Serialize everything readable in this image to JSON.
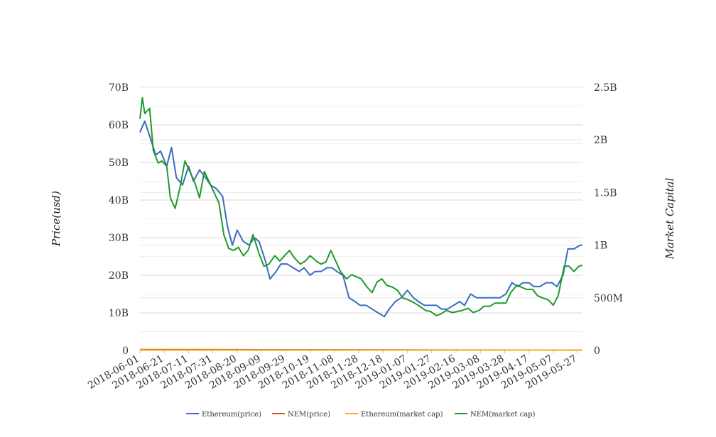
{
  "chart_data": {
    "type": "line",
    "ylabel": "Price(usd)",
    "y2label": "Market Capital",
    "x_ticks": [
      "2018-06-01",
      "2018-06-21",
      "2018-07-11",
      "2018-07-31",
      "2018-08-20",
      "2018-09-09",
      "2018-09-29",
      "2018-10-19",
      "2018-11-08",
      "2018-11-28",
      "2018-12-18",
      "2019-01-07",
      "2019-01-27",
      "2019-02-16",
      "2019-03-08",
      "2019-03-28",
      "2019-04-17",
      "2019-05-07",
      "2019-05-27"
    ],
    "y_left_ticks": [
      "0",
      "10B",
      "20B",
      "30B",
      "40B",
      "50B",
      "60B",
      "70B"
    ],
    "y_right_ticks": [
      "0",
      "500M",
      "1B",
      "1.5B",
      "2B",
      "2.5B"
    ],
    "ylim_left": [
      0,
      70000000000
    ],
    "ylim_right": [
      0,
      2500000000
    ],
    "xlim": [
      "2018-06-01",
      "2019-05-31"
    ],
    "grid": true,
    "legend_position": "bottom",
    "series": [
      {
        "name": "Ethereum(price)",
        "axis": "left",
        "color": "#3a6bbf",
        "x": [
          "2018-06-01",
          "2018-06-05",
          "2018-06-10",
          "2018-06-14",
          "2018-06-18",
          "2018-06-23",
          "2018-06-27",
          "2018-07-01",
          "2018-07-06",
          "2018-07-11",
          "2018-07-15",
          "2018-07-20",
          "2018-07-25",
          "2018-07-29",
          "2018-08-03",
          "2018-08-08",
          "2018-08-12",
          "2018-08-16",
          "2018-08-20",
          "2018-08-25",
          "2018-08-30",
          "2018-09-03",
          "2018-09-07",
          "2018-09-12",
          "2018-09-16",
          "2018-09-21",
          "2018-09-25",
          "2018-09-30",
          "2018-10-05",
          "2018-10-10",
          "2018-10-14",
          "2018-10-19",
          "2018-10-23",
          "2018-10-28",
          "2018-11-02",
          "2018-11-06",
          "2018-11-10",
          "2018-11-15",
          "2018-11-20",
          "2018-11-25",
          "2018-11-29",
          "2018-12-04",
          "2018-12-09",
          "2018-12-14",
          "2018-12-19",
          "2018-12-23",
          "2018-12-28",
          "2019-01-02",
          "2019-01-07",
          "2019-01-12",
          "2019-01-16",
          "2019-01-21",
          "2019-01-26",
          "2019-01-31",
          "2019-02-04",
          "2019-02-09",
          "2019-02-14",
          "2019-02-19",
          "2019-02-23",
          "2019-02-28",
          "2019-03-05",
          "2019-03-10",
          "2019-03-15",
          "2019-03-19",
          "2019-03-24",
          "2019-03-29",
          "2019-04-03",
          "2019-04-08",
          "2019-04-12",
          "2019-04-17",
          "2019-04-21",
          "2019-04-26",
          "2019-05-01",
          "2019-05-06",
          "2019-05-10",
          "2019-05-15",
          "2019-05-19",
          "2019-05-24",
          "2019-05-29",
          "2019-05-31"
        ],
        "values": [
          58,
          61,
          56,
          52,
          53,
          49,
          54,
          46,
          44,
          49,
          45,
          48,
          46,
          44,
          43,
          41,
          33,
          28,
          32,
          29,
          28,
          30,
          29,
          24,
          19,
          21,
          23,
          23,
          22,
          21,
          22,
          20,
          21,
          21,
          22,
          22,
          21,
          20,
          14,
          13,
          12,
          12,
          11,
          10,
          9,
          11,
          13,
          14,
          16,
          14,
          13,
          12,
          12,
          12,
          11,
          11,
          12,
          13,
          12,
          15,
          14,
          14,
          14,
          14,
          14,
          15,
          18,
          17,
          18,
          18,
          17,
          17,
          18,
          18,
          17,
          20,
          27,
          27,
          28,
          28
        ]
      },
      {
        "name": "NEM(price)",
        "axis": "left",
        "color": "#d6541d",
        "x": [
          "2018-06-01",
          "2019-05-31"
        ],
        "values": [
          0.25,
          0.07
        ]
      },
      {
        "name": "Ethereum(market cap)",
        "axis": "left",
        "color": "#f0b01e",
        "x": [
          "2018-06-01",
          "2019-05-31"
        ],
        "values": [
          0.1,
          0.1
        ]
      },
      {
        "name": "NEM(market cap)",
        "axis": "right",
        "color": "#1e9a2a",
        "x": [
          "2018-06-01",
          "2018-06-03",
          "2018-06-05",
          "2018-06-09",
          "2018-06-12",
          "2018-06-16",
          "2018-06-19",
          "2018-06-23",
          "2018-06-26",
          "2018-06-30",
          "2018-07-04",
          "2018-07-08",
          "2018-07-12",
          "2018-07-16",
          "2018-07-20",
          "2018-07-24",
          "2018-07-28",
          "2018-08-01",
          "2018-08-05",
          "2018-08-09",
          "2018-08-13",
          "2018-08-17",
          "2018-08-21",
          "2018-08-25",
          "2018-08-29",
          "2018-09-02",
          "2018-09-07",
          "2018-09-11",
          "2018-09-15",
          "2018-09-20",
          "2018-09-24",
          "2018-09-28",
          "2018-10-02",
          "2018-10-06",
          "2018-10-11",
          "2018-10-15",
          "2018-10-19",
          "2018-10-24",
          "2018-10-28",
          "2018-11-01",
          "2018-11-05",
          "2018-11-09",
          "2018-11-13",
          "2018-11-18",
          "2018-11-22",
          "2018-11-26",
          "2018-11-30",
          "2018-12-05",
          "2018-12-09",
          "2018-12-13",
          "2018-12-17",
          "2018-12-21",
          "2018-12-26",
          "2018-12-30",
          "2019-01-03",
          "2019-01-08",
          "2019-01-13",
          "2019-01-17",
          "2019-01-22",
          "2019-01-26",
          "2019-01-31",
          "2019-02-04",
          "2019-02-08",
          "2019-02-13",
          "2019-02-17",
          "2019-02-21",
          "2019-02-26",
          "2019-03-02",
          "2019-03-07",
          "2019-03-11",
          "2019-03-16",
          "2019-03-20",
          "2019-03-24",
          "2019-03-29",
          "2019-04-02",
          "2019-04-07",
          "2019-04-11",
          "2019-04-15",
          "2019-04-20",
          "2019-04-24",
          "2019-04-28",
          "2019-05-03",
          "2019-05-07",
          "2019-05-11",
          "2019-05-16",
          "2019-05-20",
          "2019-05-24",
          "2019-05-28",
          "2019-05-31"
        ],
        "values": [
          2.2,
          2.4,
          2.25,
          2.3,
          1.9,
          1.78,
          1.8,
          1.75,
          1.45,
          1.35,
          1.55,
          1.8,
          1.7,
          1.6,
          1.45,
          1.7,
          1.6,
          1.5,
          1.4,
          1.1,
          0.97,
          0.95,
          0.98,
          0.9,
          0.95,
          1.1,
          0.92,
          0.8,
          0.82,
          0.9,
          0.85,
          0.9,
          0.95,
          0.88,
          0.82,
          0.85,
          0.9,
          0.85,
          0.82,
          0.84,
          0.95,
          0.85,
          0.75,
          0.68,
          0.72,
          0.7,
          0.68,
          0.6,
          0.55,
          0.65,
          0.68,
          0.62,
          0.6,
          0.57,
          0.5,
          0.48,
          0.45,
          0.42,
          0.38,
          0.37,
          0.33,
          0.35,
          0.38,
          0.36,
          0.37,
          0.38,
          0.4,
          0.36,
          0.38,
          0.42,
          0.42,
          0.45,
          0.45,
          0.45,
          0.55,
          0.62,
          0.6,
          0.58,
          0.58,
          0.52,
          0.5,
          0.48,
          0.43,
          0.52,
          0.8,
          0.8,
          0.75,
          0.8,
          0.81
        ]
      }
    ]
  }
}
